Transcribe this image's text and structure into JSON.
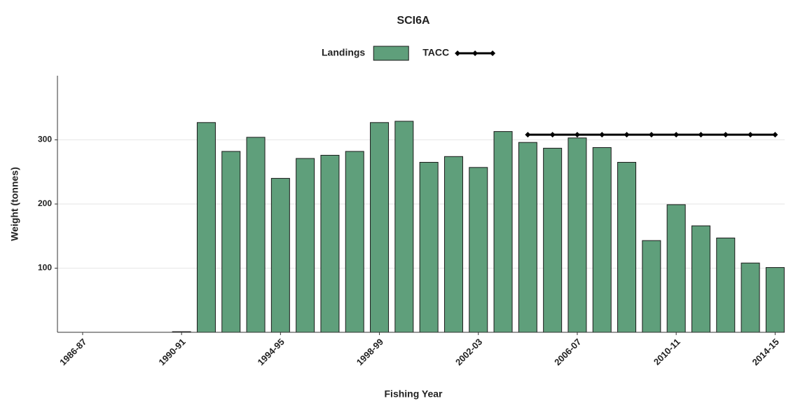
{
  "chart_data": {
    "type": "bar",
    "title": "SCI6A",
    "x_label": "Fishing Year",
    "y_label": "Weight (tonnes)",
    "categories": [
      "1986-87",
      null,
      null,
      null,
      "1990-91",
      null,
      null,
      null,
      "1994-95",
      null,
      null,
      null,
      "1998-99",
      null,
      null,
      null,
      "2002-03",
      null,
      null,
      null,
      "2006-07",
      null,
      null,
      null,
      "2010-11",
      null,
      null,
      null,
      "2014-15"
    ],
    "series": [
      {
        "name": "Landings",
        "type": "bar",
        "color": "#5f9f7b",
        "values": [
          null,
          null,
          null,
          null,
          1,
          327,
          282,
          304,
          240,
          271,
          276,
          282,
          327,
          329,
          265,
          274,
          257,
          313,
          296,
          287,
          303,
          288,
          265,
          143,
          199,
          166,
          147,
          108,
          101
        ]
      },
      {
        "name": "TACC",
        "type": "line",
        "color": "#000000",
        "values": [
          null,
          null,
          null,
          null,
          null,
          null,
          null,
          null,
          null,
          null,
          null,
          null,
          null,
          null,
          null,
          null,
          null,
          null,
          308,
          308,
          308,
          308,
          308,
          308,
          308,
          308,
          308,
          308,
          308
        ]
      }
    ],
    "ylim": [
      0,
      400
    ],
    "yticks": [
      100,
      200,
      300
    ],
    "grid": true,
    "legend": "top"
  }
}
